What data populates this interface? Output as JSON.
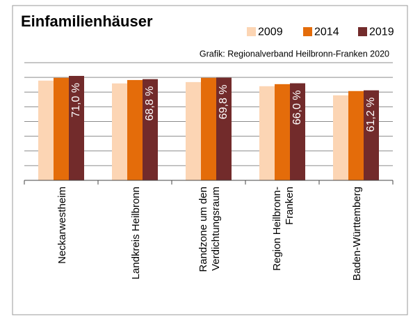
{
  "chart_data": {
    "type": "bar",
    "title": "Einfamilienhäuser",
    "source": "Grafik: Regionalverband Heilbronn-Franken 2020",
    "categories": [
      "Neckarwestheim",
      "Landkreis Heilbronn",
      "Randzone um den\nVerdichtungsraum",
      "Region Heilbronn-\nFranken",
      "Baden-Württemberg"
    ],
    "series": [
      {
        "name": "2009",
        "color": "#fcd5b4",
        "values": [
          67.8,
          65.9,
          66.8,
          64.0,
          57.8
        ]
      },
      {
        "name": "2014",
        "color": "#e46c0a",
        "values": [
          69.7,
          68.2,
          69.7,
          65.4,
          60.7
        ]
      },
      {
        "name": "2019",
        "color": "#722b2b",
        "values": [
          71.0,
          68.8,
          69.8,
          66.0,
          61.2
        ],
        "value_labels": [
          "71,0 %",
          "68,8 %",
          "69,8 %",
          "66,0 %",
          "61,2 %"
        ]
      }
    ],
    "ylim": [
      0,
      80
    ],
    "yticks": [
      0,
      10,
      20,
      30,
      40,
      50,
      60,
      70,
      80
    ],
    "grid": true,
    "legend": "top-right"
  }
}
